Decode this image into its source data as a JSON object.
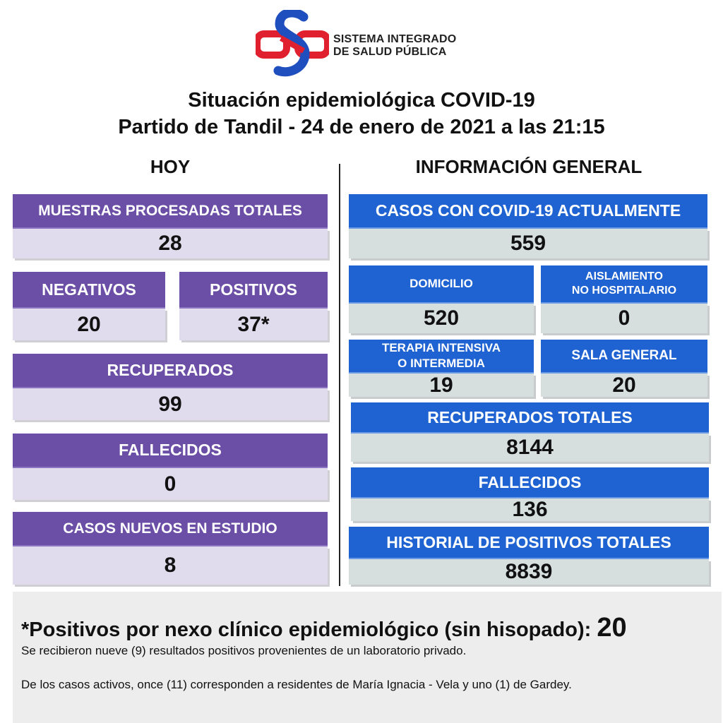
{
  "brand": {
    "line1": "SISTEMA INTEGRADO",
    "line2": "DE SALUD PÚBLICA",
    "colors": {
      "blue": "#1f4fbf",
      "red": "#e0202f"
    }
  },
  "title": {
    "line1": "Situación epidemiológica COVID-19",
    "line2": "Partido de Tandil - 24 de enero de 2021 a las 21:15"
  },
  "hoy": {
    "heading": "HOY",
    "muestras": {
      "label": "MUESTRAS PROCESADAS TOTALES",
      "value": "28"
    },
    "negativos": {
      "label": "NEGATIVOS",
      "value": "20"
    },
    "positivos": {
      "label": "POSITIVOS",
      "value": "37*"
    },
    "recuperados": {
      "label": "RECUPERADOS",
      "value": "99"
    },
    "fallecidos": {
      "label": "FALLECIDOS",
      "value": "0"
    },
    "en_estudio": {
      "label": "CASOS NUEVOS EN ESTUDIO",
      "value": "8"
    }
  },
  "general": {
    "heading": "INFORMACIÓN GENERAL",
    "actuales": {
      "label": "CASOS CON COVID-19 ACTUALMENTE",
      "value": "559"
    },
    "domicilio": {
      "label": "DOMICILIO",
      "value": "520"
    },
    "aislamiento": {
      "label_line1": "AISLAMIENTO",
      "label_line2": "NO HOSPITALARIO",
      "value": "0"
    },
    "terapia": {
      "label_line1": "TERAPIA INTENSIVA",
      "label_line2": "O INTERMEDIA",
      "value": "19"
    },
    "sala": {
      "label": "SALA GENERAL",
      "value": "20"
    },
    "recuperados_totales": {
      "label": "RECUPERADOS TOTALES",
      "value": "8144"
    },
    "fallecidos": {
      "label": "FALLECIDOS",
      "value": "136"
    },
    "historial": {
      "label": "HISTORIAL DE POSITIVOS TOTALES",
      "value": "8839"
    }
  },
  "note": {
    "title": "*Positivos por nexo clínico epidemiológico (sin hisopado):",
    "value": "20",
    "line1": "Se recibieron nueve (9) resultados positivos provenientes de un laboratorio privado.",
    "line2": "De los casos activos, once (11) corresponden a residentes de María Ignacia - Vela y uno (1) de Gardey."
  },
  "colors": {
    "purple": "#6b4ea5",
    "lavender": "#e0dced",
    "blue": "#1f63d2",
    "gray": "#d6dede"
  }
}
